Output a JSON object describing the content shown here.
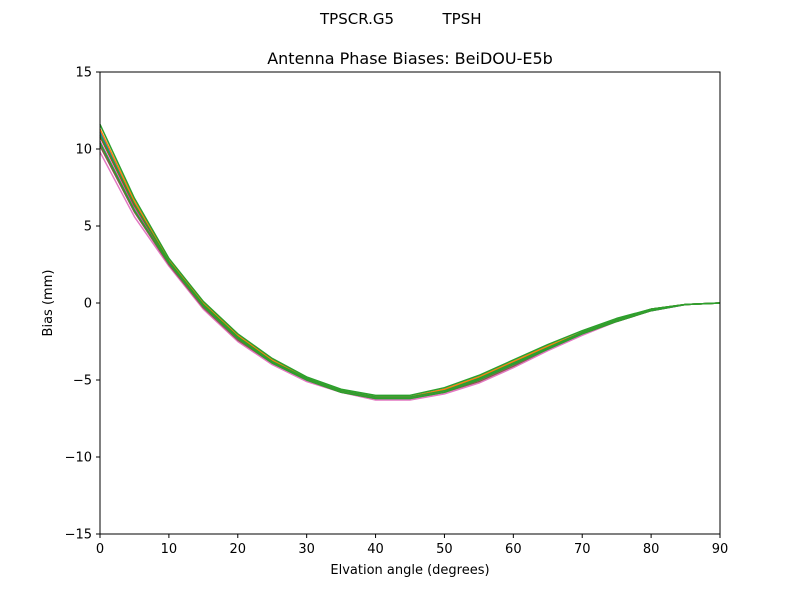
{
  "header": {
    "antenna": "TPSCR.G5",
    "radome": "TPSH"
  },
  "chart_data": {
    "type": "line",
    "title": "Antenna Phase Biases: BeiDOU-E5b",
    "xlabel": "Elvation angle (degrees)",
    "ylabel": "Bias (mm)",
    "xlim": [
      0,
      90
    ],
    "ylim": [
      -15,
      15
    ],
    "xticks": [
      0,
      10,
      20,
      30,
      40,
      50,
      60,
      70,
      80,
      90
    ],
    "yticks": [
      -15,
      -10,
      -5,
      0,
      5,
      10,
      15
    ],
    "xtick_labels": [
      "0",
      "10",
      "20",
      "30",
      "40",
      "50",
      "60",
      "70",
      "80",
      "90"
    ],
    "ytick_labels": [
      "−15",
      "−10",
      "−5",
      "0",
      "5",
      "10",
      "15"
    ],
    "grid": false,
    "legend": false,
    "x": [
      0,
      5,
      10,
      15,
      20,
      25,
      30,
      35,
      40,
      45,
      50,
      55,
      60,
      65,
      70,
      75,
      80,
      85,
      90
    ],
    "series": [
      {
        "color": "#e377c2",
        "values": [
          9.8,
          5.6,
          2.4,
          -0.4,
          -2.5,
          -4.0,
          -5.1,
          -5.8,
          -6.3,
          -6.3,
          -5.9,
          -5.2,
          -4.2,
          -3.1,
          -2.1,
          -1.2,
          -0.5,
          -0.1,
          0.0
        ]
      },
      {
        "color": "#8c564b",
        "values": [
          10.2,
          5.9,
          2.5,
          -0.3,
          -2.4,
          -3.9,
          -5.0,
          -5.8,
          -6.2,
          -6.2,
          -5.8,
          -5.1,
          -4.1,
          -3.0,
          -2.0,
          -1.2,
          -0.5,
          -0.1,
          0.0
        ]
      },
      {
        "color": "#9467bd",
        "values": [
          10.5,
          6.1,
          2.6,
          -0.2,
          -2.3,
          -3.8,
          -5.0,
          -5.7,
          -6.2,
          -6.2,
          -5.7,
          -5.0,
          -4.0,
          -3.0,
          -2.0,
          -1.1,
          -0.5,
          -0.1,
          0.0
        ]
      },
      {
        "color": "#d62728",
        "values": [
          10.8,
          6.3,
          2.7,
          -0.1,
          -2.2,
          -3.8,
          -4.9,
          -5.7,
          -6.1,
          -6.1,
          -5.7,
          -4.9,
          -3.9,
          -2.9,
          -1.9,
          -1.1,
          -0.4,
          -0.1,
          0.0
        ]
      },
      {
        "color": "#1f77b4",
        "values": [
          11.1,
          6.5,
          2.8,
          0.0,
          -2.1,
          -3.7,
          -4.9,
          -5.7,
          -6.1,
          -6.1,
          -5.6,
          -4.9,
          -3.9,
          -2.9,
          -1.9,
          -1.1,
          -0.4,
          -0.1,
          0.0
        ]
      },
      {
        "color": "#ff7f0e",
        "values": [
          11.3,
          6.6,
          2.8,
          0.0,
          -2.1,
          -3.7,
          -4.9,
          -5.7,
          -6.1,
          -6.1,
          -5.6,
          -4.8,
          -3.8,
          -2.8,
          -1.9,
          -1.1,
          -0.4,
          -0.1,
          0.0
        ]
      },
      {
        "color": "#2ca02c",
        "values": [
          11.6,
          6.8,
          2.9,
          0.1,
          -2.0,
          -3.6,
          -4.8,
          -5.6,
          -6.0,
          -6.0,
          -5.5,
          -4.7,
          -3.7,
          -2.7,
          -1.8,
          -1.0,
          -0.4,
          -0.1,
          0.0
        ]
      },
      {
        "color": "#2ca02c",
        "values": [
          10.9,
          6.4,
          2.7,
          -0.1,
          -2.2,
          -3.8,
          -4.9,
          -5.7,
          -6.1,
          -6.1,
          -5.7,
          -4.9,
          -3.9,
          -2.9,
          -1.9,
          -1.1,
          -0.4,
          -0.1,
          0.0
        ]
      },
      {
        "color": "#2ca02c",
        "values": [
          10.4,
          6.0,
          2.6,
          -0.2,
          -2.3,
          -3.9,
          -5.0,
          -5.8,
          -6.2,
          -6.2,
          -5.8,
          -5.0,
          -4.0,
          -3.0,
          -2.0,
          -1.2,
          -0.5,
          -0.1,
          0.0
        ]
      }
    ]
  }
}
